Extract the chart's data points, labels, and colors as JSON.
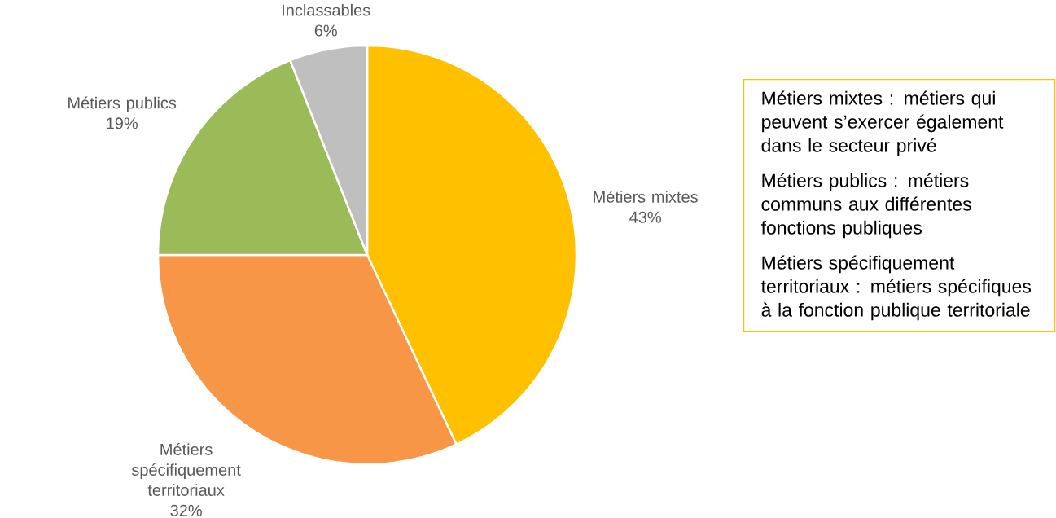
{
  "chart_data": {
    "type": "pie",
    "categories": [
      "Métiers mixtes",
      "Métiers spécifiquement territoriaux",
      "Métiers publics",
      "Inclassables"
    ],
    "values": [
      43,
      32,
      19,
      6
    ],
    "value_labels": [
      "43%",
      "32%",
      "19%",
      "6%"
    ],
    "colors": [
      "#ffc000",
      "#f79646",
      "#9bbb59",
      "#bfbfbf"
    ],
    "annotations": [
      "Métiers mixtes : métiers qui peuvent s’exercer également dans le secteur privé",
      "Métiers publics : métiers communs aux différentes fonctions publiques",
      "Métiers spécifiquement territoriaux : métiers spécifiques à la fonction publique territoriale"
    ]
  }
}
